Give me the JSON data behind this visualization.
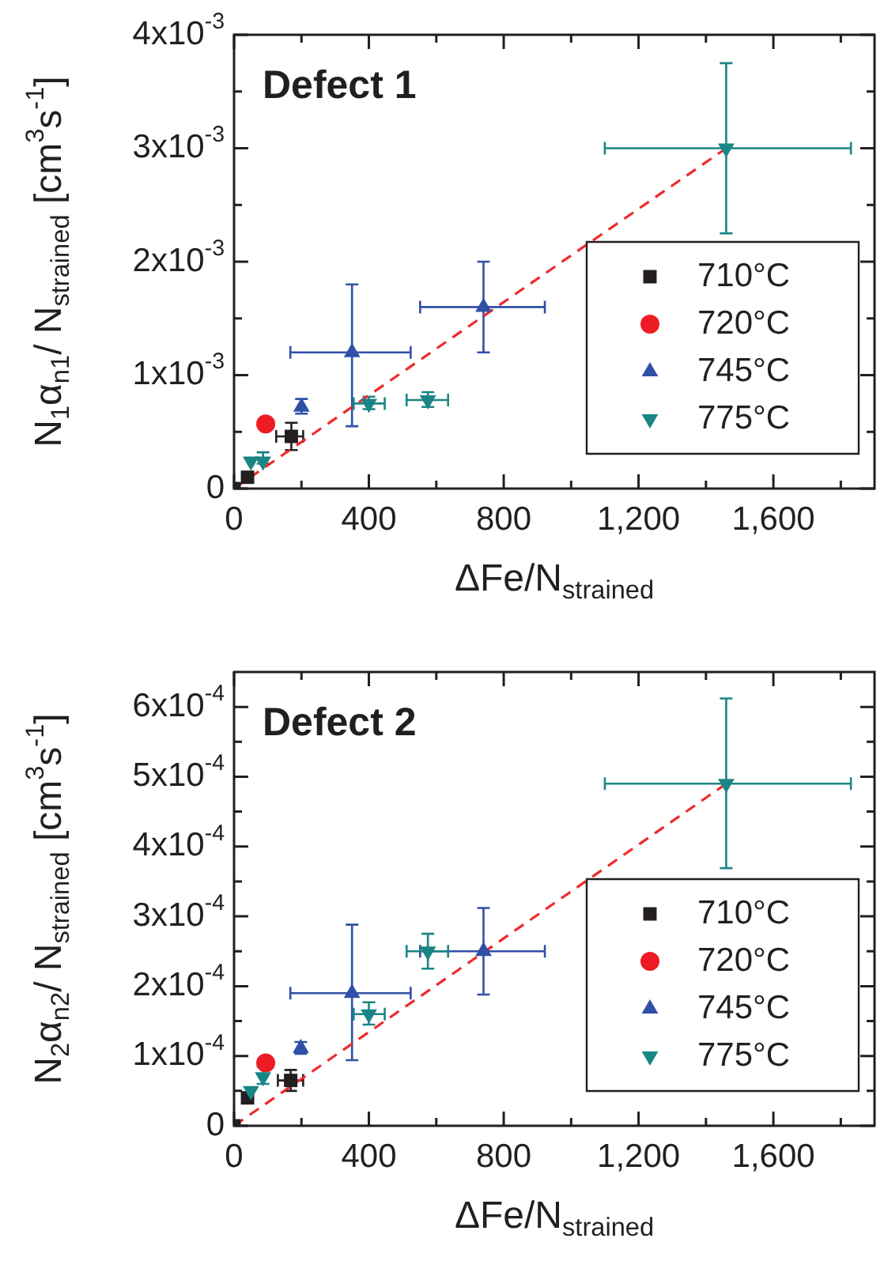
{
  "chart_data": [
    {
      "type": "scatter",
      "title": "Defect 1",
      "xlabel": "ΔFe/N$_{strained}$",
      "ylabel": "N$_{1}$α$_{n1}$/ N$_{strained}$ [cm$^{3}$s$^{-1}$]",
      "xlim": [
        0,
        1900
      ],
      "xticks": [
        0,
        {
          "value": 200,
          "label": null
        },
        400,
        {
          "value": 600,
          "label": null
        },
        800,
        {
          "value": 1000,
          "label": null
        },
        {
          "value": 1200,
          "label": "1,200"
        },
        {
          "value": 1400,
          "label": null
        },
        {
          "value": 1600,
          "label": "1,600"
        },
        {
          "value": 1800,
          "label": null
        }
      ],
      "ylim": [
        0,
        0.004
      ],
      "yticks": [
        0,
        {
          "value": 0.0005,
          "label": null
        },
        {
          "value": 0.001,
          "label": "1x10$^{-3}$"
        },
        {
          "value": 0.0015,
          "label": null
        },
        {
          "value": 0.002,
          "label": "2x10$^{-3}$"
        },
        {
          "value": 0.0025,
          "label": null
        },
        {
          "value": 0.003,
          "label": "3x10$^{-3}$"
        },
        {
          "value": 0.0035,
          "label": null
        },
        {
          "value": 0.004,
          "label": "4x10$^{-3}$"
        }
      ],
      "grid": false,
      "legend": "bottom right",
      "series": [
        {
          "name": "710°C",
          "color": "#231f20",
          "marker": "square",
          "x": [
            0,
            40,
            170
          ],
          "values": [
            0,
            0.0001,
            0.00046
          ],
          "errors": [
            null,
            null,
            [
              0.00034,
              0.00058
            ]
          ],
          "xerrors": [
            null,
            null,
            [
              125,
              205
            ]
          ]
        },
        {
          "name": "720°C",
          "color": "#ed1c24",
          "marker": "circle",
          "x": [
            94
          ],
          "values": [
            0.00057
          ]
        },
        {
          "name": "745°C",
          "color": "#3050a8",
          "marker": "triangle",
          "x": [
            200,
            350,
            740
          ],
          "values": [
            0.00072,
            0.0012,
            0.0016
          ],
          "errors": [
            [
              0.00066,
              0.00079
            ],
            [
              0.00055,
              0.0018
            ],
            [
              0.0012,
              0.002
            ]
          ],
          "xerrors": [
            null,
            [
              167,
              524
            ],
            [
              552,
              922
            ]
          ]
        },
        {
          "name": "775°C",
          "color": "#1a8585",
          "marker": "triangle_down",
          "x": [
            50,
            86,
            400,
            575,
            1460
          ],
          "values": [
            0.00024,
            0.00024,
            0.00075,
            0.00078,
            0.003
          ],
          "errors": [
            null,
            [
              0.00022,
              0.00032
            ],
            [
              0.0007,
              0.00081
            ],
            [
              0.00072,
              0.00085
            ],
            [
              0.00225,
              0.00375
            ]
          ],
          "xerrors": [
            null,
            null,
            [
              355,
              447
            ],
            [
              512,
              635
            ],
            [
              1100,
              1830
            ]
          ]
        },
        {
          "type": "line",
          "color": "#ee2a2a",
          "line_style": "dashed",
          "marker": "none",
          "x": [
            0,
            1460
          ],
          "values": [
            0,
            0.003
          ]
        }
      ]
    },
    {
      "type": "scatter",
      "title": "Defect 2",
      "xlabel": "ΔFe/N$_{strained}$",
      "ylabel": "N$_{2}$α$_{n2}$/ N$_{strained}$ [cm$^{3}$s$^{-1}$]",
      "xlim": [
        0,
        1900
      ],
      "xticks": [
        0,
        {
          "value": 200,
          "label": null
        },
        400,
        {
          "value": 600,
          "label": null
        },
        800,
        {
          "value": 1000,
          "label": null
        },
        {
          "value": 1200,
          "label": "1,200"
        },
        {
          "value": 1400,
          "label": null
        },
        {
          "value": 1600,
          "label": "1,600"
        },
        {
          "value": 1800,
          "label": null
        }
      ],
      "ylim": [
        0,
        0.00065
      ],
      "yticks": [
        0,
        {
          "value": 5e-05,
          "label": null
        },
        {
          "value": 0.0001,
          "label": "1x10$^{-4}$"
        },
        {
          "value": 0.00015,
          "label": null
        },
        {
          "value": 0.0002,
          "label": "2x10$^{-4}$"
        },
        {
          "value": 0.00025,
          "label": null
        },
        {
          "value": 0.0003,
          "label": "3x10$^{-4}$"
        },
        {
          "value": 0.00035,
          "label": null
        },
        {
          "value": 0.0004,
          "label": "4x10$^{-4}$"
        },
        {
          "value": 0.00045,
          "label": null
        },
        {
          "value": 0.0005,
          "label": "5x10$^{-4}$"
        },
        {
          "value": 0.00055,
          "label": null
        },
        {
          "value": 0.0006,
          "label": "6x10$^{-4}$"
        }
      ],
      "grid": false,
      "legend": "bottom right",
      "series": [
        {
          "name": "710°C",
          "color": "#231f20",
          "marker": "square",
          "x": [
            0,
            40,
            168
          ],
          "values": [
            0,
            4e-05,
            6.5e-05
          ],
          "errors": [
            null,
            null,
            [
              5e-05,
              8e-05
            ]
          ],
          "xerrors": [
            null,
            null,
            [
              130,
              205
            ]
          ]
        },
        {
          "name": "720°C",
          "color": "#ed1c24",
          "marker": "circle",
          "x": [
            94
          ],
          "values": [
            9e-05
          ]
        },
        {
          "name": "745°C",
          "color": "#3050a8",
          "marker": "triangle",
          "x": [
            198,
            350,
            740
          ],
          "values": [
            0.000111,
            0.00019,
            0.00025
          ],
          "errors": [
            [
              0.000103,
              0.00012
            ],
            [
              9.4e-05,
              0.000288
            ],
            [
              0.000188,
              0.000312
            ]
          ],
          "xerrors": [
            null,
            [
              167,
              524
            ],
            [
              552,
              922
            ]
          ]
        },
        {
          "name": "775°C",
          "color": "#1a8585",
          "marker": "triangle_down",
          "x": [
            50,
            86,
            400,
            575,
            1460
          ],
          "values": [
            5e-05,
            7e-05,
            0.00016,
            0.00025,
            0.00049
          ],
          "errors": [
            null,
            [
              6e-05,
              8.5e-05
            ],
            [
              0.000145,
              0.000177
            ],
            [
              0.000225,
              0.000275
            ],
            [
              0.000369,
              0.000612
            ]
          ],
          "xerrors": [
            null,
            null,
            [
              355,
              447
            ],
            [
              512,
              635
            ],
            [
              1100,
              1830
            ]
          ]
        },
        {
          "type": "line",
          "color": "#ee2a2a",
          "line_style": "dashed",
          "marker": "none",
          "x": [
            0,
            1460
          ],
          "values": [
            0,
            0.00049
          ]
        }
      ]
    }
  ]
}
